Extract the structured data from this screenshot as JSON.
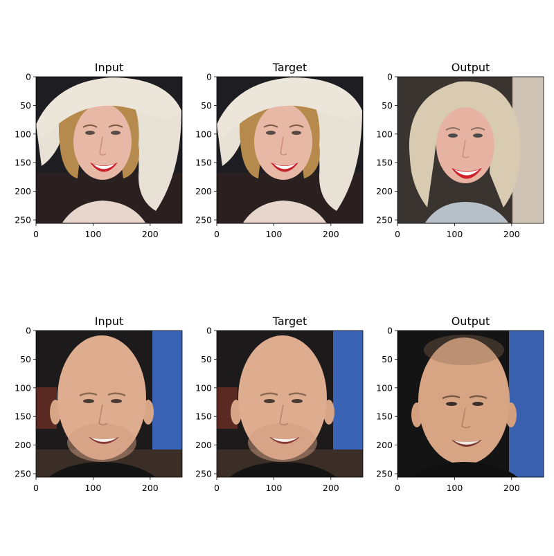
{
  "figure": {
    "rows": [
      {
        "subject": "woman-with-white-hat",
        "panels": [
          {
            "title": "Input"
          },
          {
            "title": "Target"
          },
          {
            "title": "Output"
          }
        ]
      },
      {
        "subject": "bald-smiling-man",
        "panels": [
          {
            "title": "Input"
          },
          {
            "title": "Target"
          },
          {
            "title": "Output"
          }
        ]
      }
    ],
    "y_ticks": [
      "0",
      "50",
      "100",
      "150",
      "200",
      "250"
    ],
    "x_ticks": [
      "0",
      "100",
      "200"
    ],
    "axis_range": [
      0,
      256
    ]
  }
}
